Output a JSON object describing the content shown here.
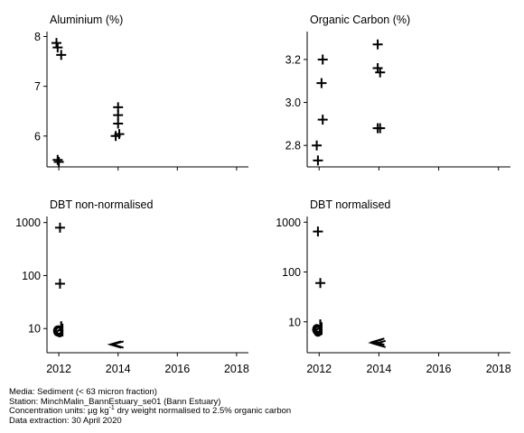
{
  "chart_data": [
    {
      "type": "scatter",
      "title": "Aluminium (%)",
      "xlim": [
        2011.6,
        2018.4
      ],
      "ylim": [
        5.38,
        8.1
      ],
      "yticks": [
        6,
        7,
        8
      ],
      "ytick_labels": [
        "6",
        "7",
        "8"
      ],
      "xticks": [
        2012,
        2014,
        2016,
        2018
      ],
      "xtick_labels": [],
      "points": [
        {
          "x": 2011.92,
          "y": 7.87,
          "m": "+"
        },
        {
          "x": 2011.96,
          "y": 7.78,
          "m": "+"
        },
        {
          "x": 2012.08,
          "y": 7.63,
          "m": "+"
        },
        {
          "x": 2011.96,
          "y": 5.52,
          "m": "+"
        },
        {
          "x": 2012.0,
          "y": 5.48,
          "m": "+"
        },
        {
          "x": 2014.0,
          "y": 6.58,
          "m": "+"
        },
        {
          "x": 2014.0,
          "y": 6.42,
          "m": "+"
        },
        {
          "x": 2014.0,
          "y": 6.25,
          "m": "+"
        },
        {
          "x": 2014.04,
          "y": 6.04,
          "m": "+"
        },
        {
          "x": 2013.92,
          "y": 6.0,
          "m": "+"
        }
      ]
    },
    {
      "type": "scatter",
      "title": "Organic Carbon (%)",
      "xlim": [
        2011.6,
        2018.4
      ],
      "ylim": [
        2.7,
        3.33
      ],
      "yticks": [
        2.8,
        3.0,
        3.2
      ],
      "ytick_labels": [
        "2.8",
        "3.0",
        "3.2"
      ],
      "xticks": [
        2012,
        2014,
        2016,
        2018
      ],
      "xtick_labels": [],
      "points": [
        {
          "x": 2012.12,
          "y": 3.2,
          "m": "+"
        },
        {
          "x": 2012.08,
          "y": 3.09,
          "m": "+"
        },
        {
          "x": 2012.12,
          "y": 2.92,
          "m": "+"
        },
        {
          "x": 2011.92,
          "y": 2.8,
          "m": "+"
        },
        {
          "x": 2011.96,
          "y": 2.73,
          "m": "+"
        },
        {
          "x": 2013.96,
          "y": 3.27,
          "m": "+"
        },
        {
          "x": 2013.96,
          "y": 3.16,
          "m": "+"
        },
        {
          "x": 2014.04,
          "y": 3.14,
          "m": "+"
        },
        {
          "x": 2013.96,
          "y": 2.88,
          "m": "+"
        },
        {
          "x": 2014.04,
          "y": 2.88,
          "m": "+"
        }
      ]
    },
    {
      "type": "scatter",
      "title": "DBT non-normalised",
      "yscale": "log",
      "xlim": [
        2011.6,
        2018.4
      ],
      "ylim": [
        3.5,
        1300
      ],
      "yticks": [
        10,
        100,
        1000
      ],
      "ytick_labels": [
        "10",
        "100",
        "1000"
      ],
      "xticks": [
        2012,
        2014,
        2016,
        2018
      ],
      "xtick_labels": [
        "2012",
        "2014",
        "2016",
        "2018"
      ],
      "points": [
        {
          "x": 2012.04,
          "y": 800,
          "m": "+"
        },
        {
          "x": 2012.04,
          "y": 70,
          "m": "+"
        },
        {
          "x": 2011.96,
          "y": 9,
          "m": "O"
        },
        {
          "x": 2012.0,
          "y": 9,
          "m": "O"
        },
        {
          "x": 2012.08,
          "y": 10,
          "m": "d"
        },
        {
          "x": 2012.12,
          "y": 9,
          "m": "d"
        },
        {
          "x": 2014.0,
          "y": 5,
          "m": "<"
        },
        {
          "x": 2013.92,
          "y": 5,
          "m": "<"
        }
      ]
    },
    {
      "type": "scatter",
      "title": "DBT normalised",
      "yscale": "log",
      "xlim": [
        2011.6,
        2018.4
      ],
      "ylim": [
        2.4,
        1300
      ],
      "yticks": [
        10,
        100,
        1000
      ],
      "ytick_labels": [
        "10",
        "100",
        "1000"
      ],
      "xticks": [
        2012,
        2014,
        2016,
        2018
      ],
      "xtick_labels": [
        "2012",
        "2014",
        "2016",
        "2018"
      ],
      "points": [
        {
          "x": 2011.96,
          "y": 650,
          "m": "+"
        },
        {
          "x": 2012.04,
          "y": 60,
          "m": "+"
        },
        {
          "x": 2011.92,
          "y": 7,
          "m": "O"
        },
        {
          "x": 2011.96,
          "y": 6.5,
          "m": "O"
        },
        {
          "x": 2012.04,
          "y": 8,
          "m": "d"
        },
        {
          "x": 2012.08,
          "y": 7,
          "m": "d"
        },
        {
          "x": 2013.92,
          "y": 3.8,
          "m": "<"
        },
        {
          "x": 2014.0,
          "y": 4.0,
          "m": "<"
        },
        {
          "x": 2014.04,
          "y": 3.6,
          "m": "<"
        }
      ]
    }
  ],
  "footer": {
    "media": "Media: Sediment (< 63 micron fraction)",
    "station": "Station: MinchMalin_BannEstuary_se01 (Bann Estuary)",
    "units_prefix": "Concentration units:  µg kg",
    "units_sup": "-1",
    "units_suffix": " dry weight normalised to 2.5% organic carbon",
    "extraction": "Data extraction: 30 April 2020"
  }
}
